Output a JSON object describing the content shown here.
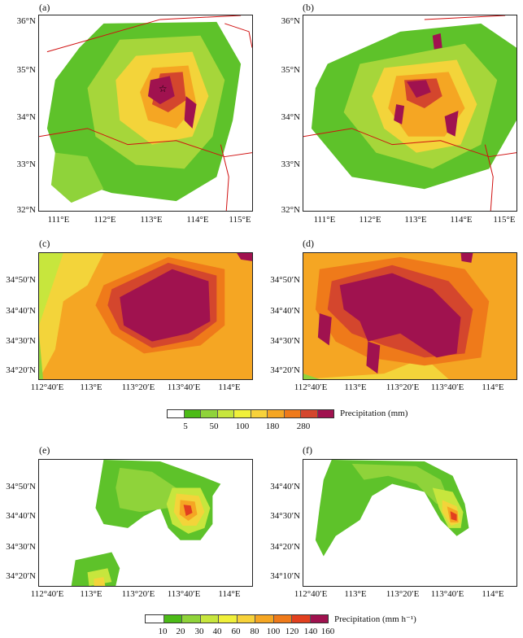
{
  "panels": [
    {
      "label": "(a)",
      "y_ticks": [
        "36°N",
        "35°N",
        "34°N",
        "33°N",
        "32°N"
      ],
      "x_ticks": [
        "111°E",
        "112°E",
        "113°E",
        "114°E",
        "115°E"
      ]
    },
    {
      "label": "(b)",
      "y_ticks": [
        "36°N",
        "35°N",
        "34°N",
        "33°N",
        "32°N"
      ],
      "x_ticks": [
        "111°E",
        "112°E",
        "113°E",
        "114°E",
        "115°E"
      ]
    },
    {
      "label": "(c)",
      "y_ticks": [
        "34°50′N",
        "34°40′N",
        "34°30′N",
        "34°20′N"
      ],
      "x_ticks": [
        "112°40′E",
        "113°E",
        "113°20′E",
        "113°40′E",
        "114°E"
      ]
    },
    {
      "label": "(d)",
      "y_ticks": [
        "34°50′N",
        "34°40′N",
        "34°30′N",
        "34°20′N"
      ],
      "x_ticks": [
        "112°40′E",
        "113°E",
        "113°20′E",
        "113°40′E",
        "114°E"
      ]
    },
    {
      "label": "(e)",
      "y_ticks": [
        "34°50′N",
        "34°40′N",
        "34°30′N",
        "34°20′N"
      ],
      "x_ticks": [
        "112°40′E",
        "113°E",
        "113°20′E",
        "113°40′E",
        "114°E"
      ]
    },
    {
      "label": "(f)",
      "y_ticks": [
        "34°40′N",
        "34°30′N",
        "34°20′N",
        "34°10′N"
      ],
      "x_ticks": [
        "112°40′E",
        "113°E",
        "113°20′E",
        "113°40′E",
        "114°E"
      ]
    }
  ],
  "colorbar1": {
    "title": "Precipitation (mm)",
    "tick_labels": [
      "5",
      "50",
      "100",
      "180",
      "280"
    ],
    "colors": [
      "#ffffff",
      "#4cbb17",
      "#8fd33a",
      "#c7e63d",
      "#f0f03a",
      "#f7d23a",
      "#f5a623",
      "#ef7a1a",
      "#d4462d",
      "#a0124f"
    ]
  },
  "colorbar2": {
    "title": "Precipitation (mm h⁻¹)",
    "tick_labels": [
      "10",
      "20",
      "30",
      "40",
      "60",
      "80",
      "100",
      "120",
      "140",
      "160"
    ],
    "colors": [
      "#ffffff",
      "#4cbb17",
      "#8fd33a",
      "#c7e63d",
      "#f0f03a",
      "#f7d23a",
      "#f5a623",
      "#ef7a1a",
      "#e2401f",
      "#a0124f"
    ]
  }
}
